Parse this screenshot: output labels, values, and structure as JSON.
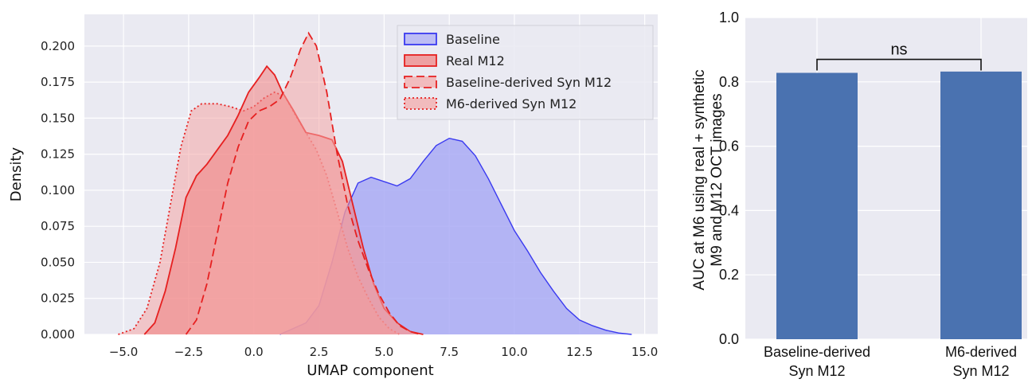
{
  "chart_data": [
    {
      "type": "area",
      "xlabel": "UMAP component",
      "ylabel": "Density",
      "xlim": [
        -6.5,
        15.5
      ],
      "ylim": [
        0,
        0.222
      ],
      "grid": true,
      "legend_position": "top-right",
      "x_ticks": [
        "−5.0",
        "−2.5",
        "0.0",
        "2.5",
        "5.0",
        "7.5",
        "10.0",
        "12.5",
        "15.0"
      ],
      "y_ticks": [
        "0.000",
        "0.025",
        "0.050",
        "0.075",
        "0.100",
        "0.125",
        "0.150",
        "0.175",
        "0.200"
      ],
      "series": [
        {
          "name": "Baseline",
          "line_style": "solid",
          "color": "#3a3af0",
          "fill": "#a9aaf5",
          "points": [
            [
              1.0,
              0.0
            ],
            [
              2.0,
              0.008
            ],
            [
              2.5,
              0.02
            ],
            [
              3.0,
              0.05
            ],
            [
              3.5,
              0.085
            ],
            [
              4.0,
              0.105
            ],
            [
              4.5,
              0.109
            ],
            [
              5.0,
              0.106
            ],
            [
              5.5,
              0.103
            ],
            [
              6.0,
              0.108
            ],
            [
              6.5,
              0.12
            ],
            [
              7.0,
              0.131
            ],
            [
              7.5,
              0.136
            ],
            [
              8.0,
              0.134
            ],
            [
              8.5,
              0.124
            ],
            [
              9.0,
              0.108
            ],
            [
              9.5,
              0.09
            ],
            [
              10.0,
              0.072
            ],
            [
              10.5,
              0.058
            ],
            [
              11.0,
              0.043
            ],
            [
              11.5,
              0.03
            ],
            [
              12.0,
              0.018
            ],
            [
              12.5,
              0.01
            ],
            [
              13.0,
              0.006
            ],
            [
              13.5,
              0.003
            ],
            [
              14.0,
              0.001
            ],
            [
              14.5,
              0.0
            ]
          ]
        },
        {
          "name": "Real M12",
          "line_style": "solid",
          "color": "#e62020",
          "fill": "#f08080",
          "points": [
            [
              -4.2,
              0.0
            ],
            [
              -3.8,
              0.008
            ],
            [
              -3.4,
              0.03
            ],
            [
              -3.0,
              0.06
            ],
            [
              -2.6,
              0.095
            ],
            [
              -2.2,
              0.11
            ],
            [
              -1.8,
              0.118
            ],
            [
              -1.4,
              0.128
            ],
            [
              -1.0,
              0.138
            ],
            [
              -0.6,
              0.152
            ],
            [
              -0.2,
              0.168
            ],
            [
              0.2,
              0.178
            ],
            [
              0.5,
              0.186
            ],
            [
              0.8,
              0.18
            ],
            [
              1.1,
              0.168
            ],
            [
              1.5,
              0.156
            ],
            [
              2.0,
              0.14
            ],
            [
              2.5,
              0.138
            ],
            [
              3.0,
              0.135
            ],
            [
              3.4,
              0.12
            ],
            [
              3.8,
              0.09
            ],
            [
              4.2,
              0.06
            ],
            [
              4.6,
              0.035
            ],
            [
              5.0,
              0.018
            ],
            [
              5.5,
              0.008
            ],
            [
              6.0,
              0.002
            ],
            [
              6.5,
              0.0
            ]
          ]
        },
        {
          "name": "Baseline-derived Syn M12",
          "line_style": "dashed",
          "color": "#e62020",
          "fill": "#f4a6a6",
          "points": [
            [
              -2.6,
              0.0
            ],
            [
              -2.2,
              0.01
            ],
            [
              -1.8,
              0.035
            ],
            [
              -1.4,
              0.07
            ],
            [
              -1.0,
              0.105
            ],
            [
              -0.6,
              0.13
            ],
            [
              -0.2,
              0.148
            ],
            [
              0.2,
              0.155
            ],
            [
              0.6,
              0.158
            ],
            [
              1.0,
              0.163
            ],
            [
              1.4,
              0.178
            ],
            [
              1.8,
              0.198
            ],
            [
              2.1,
              0.209
            ],
            [
              2.4,
              0.2
            ],
            [
              2.8,
              0.168
            ],
            [
              3.2,
              0.125
            ],
            [
              3.6,
              0.09
            ],
            [
              4.0,
              0.065
            ],
            [
              4.4,
              0.045
            ],
            [
              4.8,
              0.028
            ],
            [
              5.2,
              0.015
            ],
            [
              5.6,
              0.006
            ],
            [
              6.0,
              0.002
            ],
            [
              6.4,
              0.0
            ]
          ]
        },
        {
          "name": "M6-derived Syn M12",
          "line_style": "dotted",
          "color": "#e62020",
          "fill": "#f4a6a6",
          "points": [
            [
              -5.2,
              0.0
            ],
            [
              -4.6,
              0.004
            ],
            [
              -4.1,
              0.018
            ],
            [
              -3.6,
              0.05
            ],
            [
              -3.2,
              0.09
            ],
            [
              -2.8,
              0.13
            ],
            [
              -2.4,
              0.155
            ],
            [
              -2.0,
              0.16
            ],
            [
              -1.4,
              0.16
            ],
            [
              -0.9,
              0.158
            ],
            [
              -0.4,
              0.155
            ],
            [
              0.0,
              0.158
            ],
            [
              0.4,
              0.164
            ],
            [
              0.8,
              0.168
            ],
            [
              1.2,
              0.165
            ],
            [
              1.6,
              0.152
            ],
            [
              2.0,
              0.14
            ],
            [
              2.4,
              0.128
            ],
            [
              2.8,
              0.11
            ],
            [
              3.2,
              0.085
            ],
            [
              3.6,
              0.06
            ],
            [
              4.0,
              0.04
            ],
            [
              4.4,
              0.025
            ],
            [
              4.8,
              0.012
            ],
            [
              5.2,
              0.004
            ],
            [
              5.6,
              0.0
            ]
          ]
        }
      ]
    },
    {
      "type": "bar",
      "ylabel": [
        "AUC at M6 using real + synthetic",
        "M9 and M12 OCT images"
      ],
      "ylim": [
        0,
        1.0
      ],
      "y_ticks": [
        "0.0",
        "0.2",
        "0.4",
        "0.6",
        "0.8",
        "1.0"
      ],
      "grid": true,
      "bar_color": "#4a72b0",
      "categories": [
        {
          "line1": "Baseline-derived",
          "line2": "Syn M12"
        },
        {
          "line1": "M6-derived",
          "line2": "Syn M12"
        }
      ],
      "values": [
        0.828,
        0.832
      ],
      "annotation": {
        "text": "ns",
        "y": 0.87
      }
    }
  ]
}
